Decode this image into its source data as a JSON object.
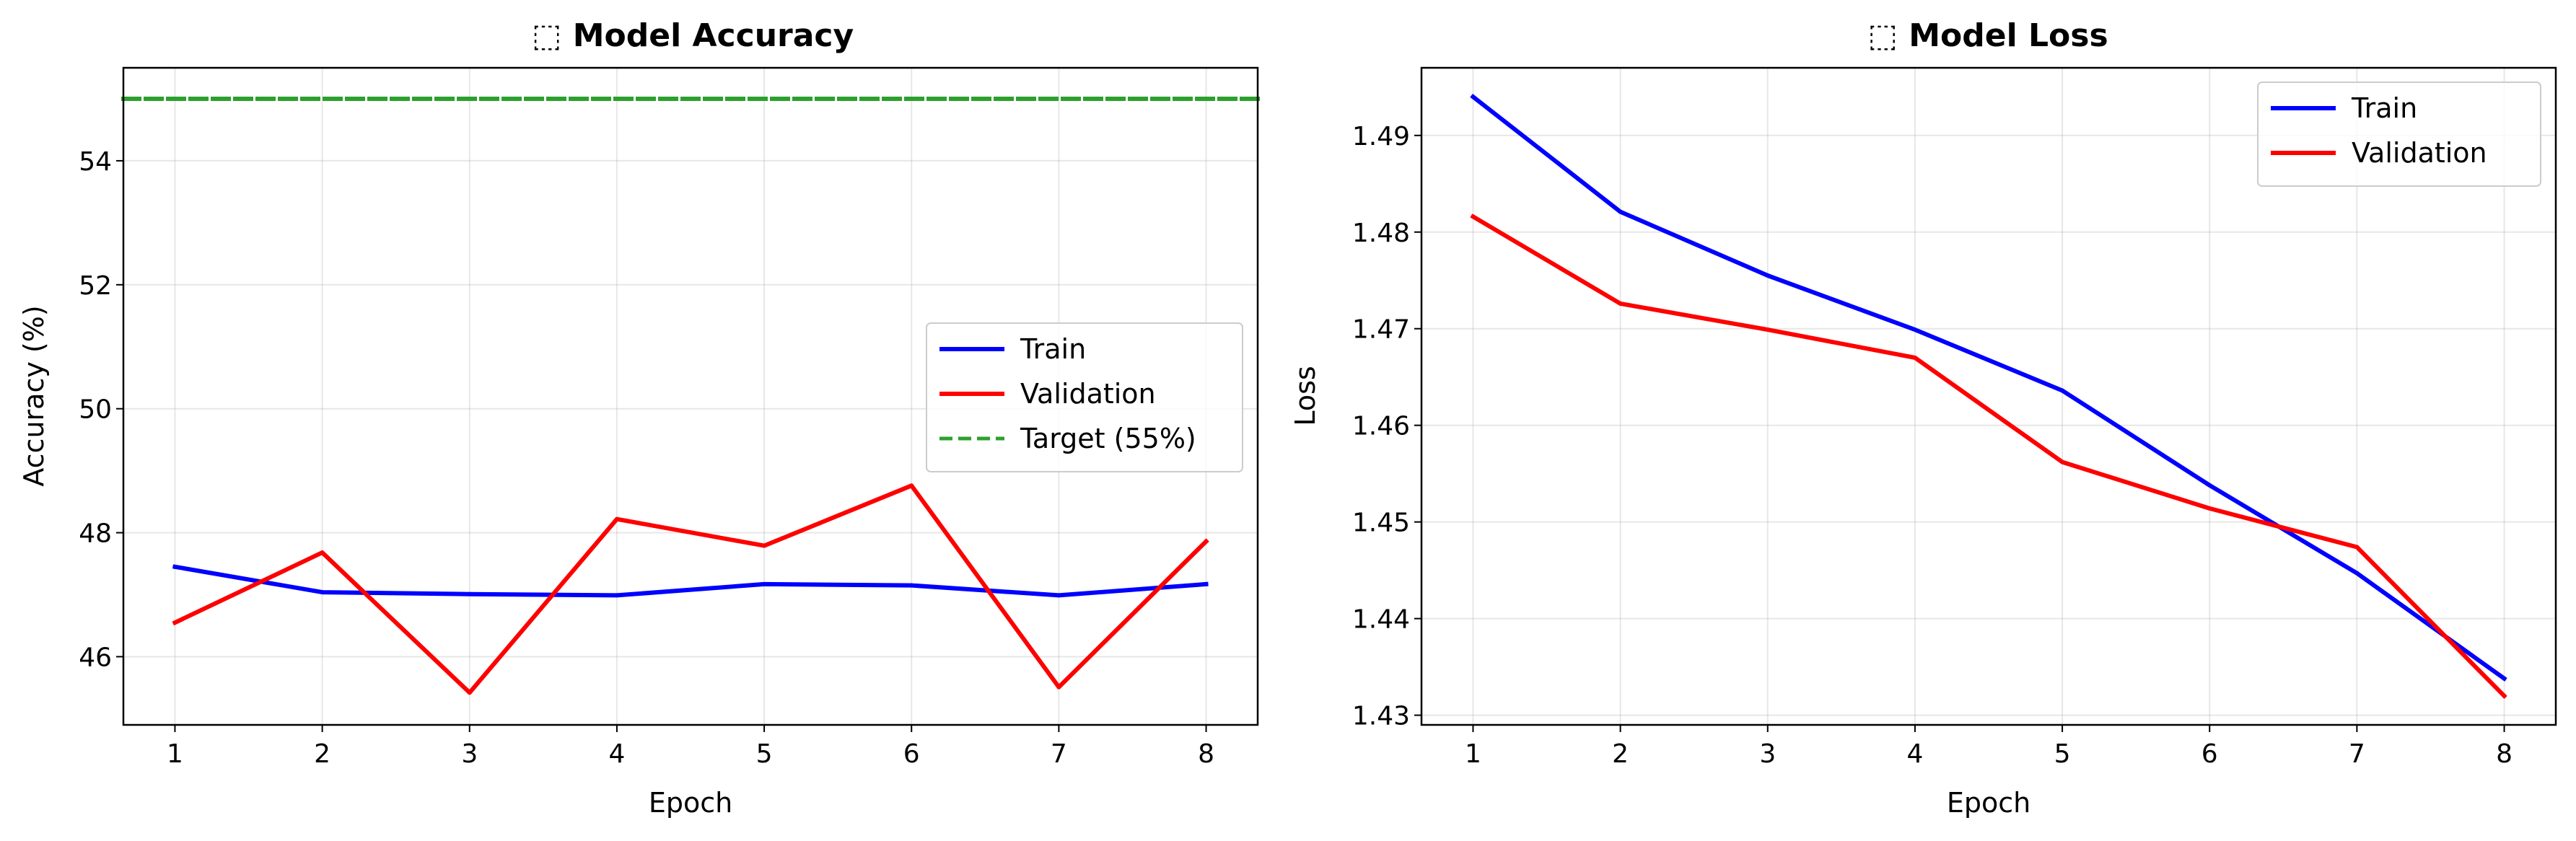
{
  "chart_data": [
    {
      "type": "line",
      "title": "⬚ Model Accuracy",
      "xlabel": "Epoch",
      "ylabel": "Accuracy (%)",
      "xlim": [
        0.65,
        8.35
      ],
      "ylim": [
        44.9,
        55.5
      ],
      "x_ticks": [
        1,
        2,
        3,
        4,
        5,
        6,
        7,
        8
      ],
      "y_ticks": [
        46,
        48,
        50,
        52,
        54
      ],
      "grid": true,
      "legend_position": "center-right",
      "x": [
        1,
        2,
        3,
        4,
        5,
        6,
        7,
        8
      ],
      "series": [
        {
          "name": "Train",
          "color": "#0000ff",
          "style": "solid",
          "values": [
            47.45,
            47.04,
            47.01,
            46.99,
            47.17,
            47.15,
            46.99,
            47.17
          ]
        },
        {
          "name": "Validation",
          "color": "#ff0000",
          "style": "solid",
          "values": [
            46.55,
            47.68,
            45.42,
            48.22,
            47.79,
            48.76,
            45.51,
            47.86
          ]
        }
      ],
      "reference_lines": [
        {
          "name": "Target (55%)",
          "y": 55,
          "color": "#2ca02c",
          "style": "dashed"
        }
      ]
    },
    {
      "type": "line",
      "title": "⬚ Model Loss",
      "xlabel": "Epoch",
      "ylabel": "Loss",
      "xlim": [
        0.65,
        8.35
      ],
      "ylim": [
        1.429,
        1.497
      ],
      "x_ticks": [
        1,
        2,
        3,
        4,
        5,
        6,
        7,
        8
      ],
      "y_ticks": [
        1.43,
        1.44,
        1.45,
        1.46,
        1.47,
        1.48,
        1.49
      ],
      "grid": true,
      "legend_position": "top-right",
      "x": [
        1,
        2,
        3,
        4,
        5,
        6,
        7,
        8
      ],
      "series": [
        {
          "name": "Train",
          "color": "#0000ff",
          "style": "solid",
          "values": [
            1.494,
            1.4821,
            1.4755,
            1.4699,
            1.4636,
            1.4538,
            1.4447,
            1.4338
          ]
        },
        {
          "name": "Validation",
          "color": "#ff0000",
          "style": "solid",
          "values": [
            1.4816,
            1.4726,
            1.4699,
            1.467,
            1.4562,
            1.4514,
            1.4474,
            1.432
          ]
        }
      ],
      "reference_lines": []
    }
  ]
}
